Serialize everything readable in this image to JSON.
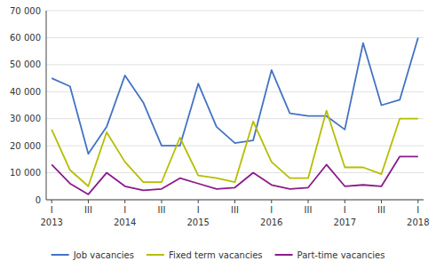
{
  "chart_data": {
    "type": "line",
    "categories": [
      "I",
      null,
      "III",
      null,
      "I",
      null,
      "III",
      null,
      "I",
      null,
      "III",
      null,
      "I",
      null,
      "III",
      null,
      "I",
      null,
      "III",
      null,
      "I"
    ],
    "annotations": [
      {
        "text": "2013",
        "x": 0
      },
      {
        "text": "2014",
        "x": 4
      },
      {
        "text": "2015",
        "x": 8
      },
      {
        "text": "2016",
        "x": 12
      },
      {
        "text": "2017",
        "x": 16
      },
      {
        "text": "2018",
        "x": 20
      }
    ],
    "series": [
      {
        "name": "Job vacancies",
        "color": "#4472c4",
        "values": [
          45000,
          42000,
          17000,
          27000,
          46000,
          36000,
          20000,
          20000,
          43000,
          27000,
          21000,
          22000,
          48000,
          32000,
          31000,
          31000,
          26000,
          58000,
          35000,
          37000,
          60000
        ]
      },
      {
        "name": "Fixed term vacancies",
        "color": "#b5be00",
        "values": [
          26000,
          11000,
          5000,
          25000,
          14000,
          6500,
          6500,
          23000,
          9000,
          8000,
          6500,
          29000,
          14000,
          8000,
          8000,
          33000,
          12000,
          12000,
          9500,
          30000,
          30000
        ]
      },
      {
        "name": "Part-time vacancies",
        "color": "#8b1a8b",
        "values": [
          13000,
          6000,
          2000,
          10000,
          5000,
          3500,
          4000,
          8000,
          6000,
          4000,
          4500,
          10000,
          5500,
          4000,
          4500,
          13000,
          5000,
          5500,
          5000,
          16000,
          16000
        ]
      }
    ],
    "ylim": [
      0,
      70000
    ],
    "yticks": [
      0,
      {
        "value": 10000,
        "label": "10 000"
      },
      {
        "value": 20000,
        "label": "20 000"
      },
      {
        "value": 30000,
        "label": "30 000"
      },
      {
        "value": 40000,
        "label": "40 000"
      },
      {
        "value": 50000,
        "label": "50 000"
      },
      {
        "value": 60000,
        "label": "60 000"
      },
      {
        "value": 70000,
        "label": "70 000"
      }
    ],
    "grid": true,
    "legend": "bottom"
  }
}
